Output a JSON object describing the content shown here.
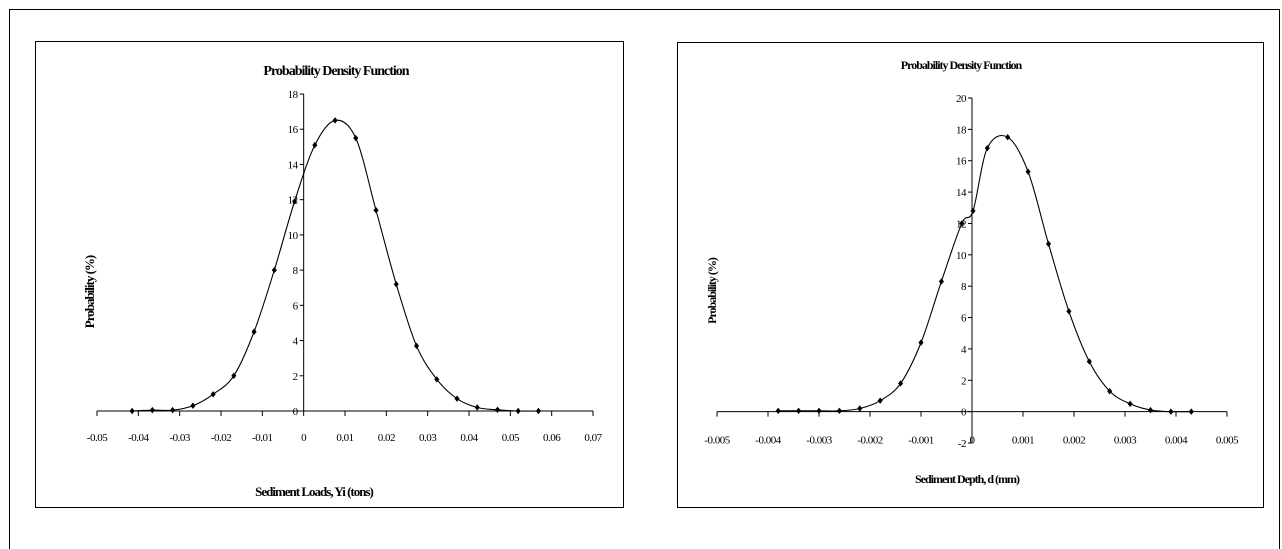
{
  "chart_data": [
    {
      "type": "line",
      "title": "Probability Density Function",
      "xlabel": "Sediment Loads, Yi (tons)",
      "ylabel": "Probability (%)",
      "xlim": [
        -0.05,
        0.07
      ],
      "ylim": [
        0,
        18
      ],
      "xticks": [
        "-0.05",
        "-0.04",
        "-0.03",
        "-0.02",
        "-0.01",
        "0",
        "0.01",
        "0.02",
        "0.03",
        "0.04",
        "0.05",
        "0.06",
        "0.07"
      ],
      "yticks": [
        "0",
        "2",
        "4",
        "6",
        "8",
        "10",
        "12",
        "14",
        "16",
        "18"
      ],
      "grid": false,
      "marker": "diamond",
      "series": [
        {
          "x": [
            -0.0415,
            -0.0366,
            -0.0317,
            -0.0268,
            -0.0219,
            -0.0169,
            -0.012,
            -0.0071,
            -0.0022,
            0.0027,
            0.0076,
            0.0126,
            0.0175,
            0.0224,
            0.0273,
            0.0322,
            0.0371,
            0.042,
            0.0469,
            0.0519,
            0.0568
          ],
          "y": [
            0.0,
            0.05,
            0.05,
            0.3,
            0.95,
            2.0,
            4.5,
            8.0,
            11.9,
            15.1,
            16.5,
            15.5,
            11.4,
            7.2,
            3.7,
            1.8,
            0.7,
            0.2,
            0.07,
            0.0,
            0.0
          ]
        }
      ]
    },
    {
      "type": "line",
      "title": "Probability Density Function",
      "xlabel": "Sediment Depth, d (mm)",
      "ylabel": "Probability (%)",
      "xlim": [
        -0.005,
        0.005
      ],
      "ylim": [
        -2,
        20
      ],
      "xticks": [
        "-0.005",
        "-0.004",
        "-0.003",
        "-0.002",
        "-0.001",
        "0",
        "0.001",
        "0.002",
        "0.003",
        "0.004",
        "0.005"
      ],
      "yticks": [
        "-2",
        "0",
        "2",
        "4",
        "6",
        "8",
        "10",
        "12",
        "14",
        "16",
        "18",
        "20"
      ],
      "grid": false,
      "marker": "diamond",
      "series": [
        {
          "x": [
            -0.0038,
            -0.0034,
            -0.003,
            -0.0026,
            -0.0022,
            -0.0018,
            -0.0014,
            -0.001,
            -0.0006,
            -0.0002,
            2e-05,
            0.0003,
            0.0007,
            0.0011,
            0.0015,
            0.0019,
            0.0023,
            0.0027,
            0.0031,
            0.0035,
            0.0039,
            0.0043
          ],
          "y": [
            0.05,
            0.05,
            0.05,
            0.05,
            0.2,
            0.7,
            1.8,
            4.4,
            8.3,
            12.0,
            12.8,
            16.8,
            17.5,
            15.3,
            10.7,
            6.4,
            3.2,
            1.3,
            0.5,
            0.1,
            0.0,
            0.0
          ]
        }
      ]
    }
  ]
}
